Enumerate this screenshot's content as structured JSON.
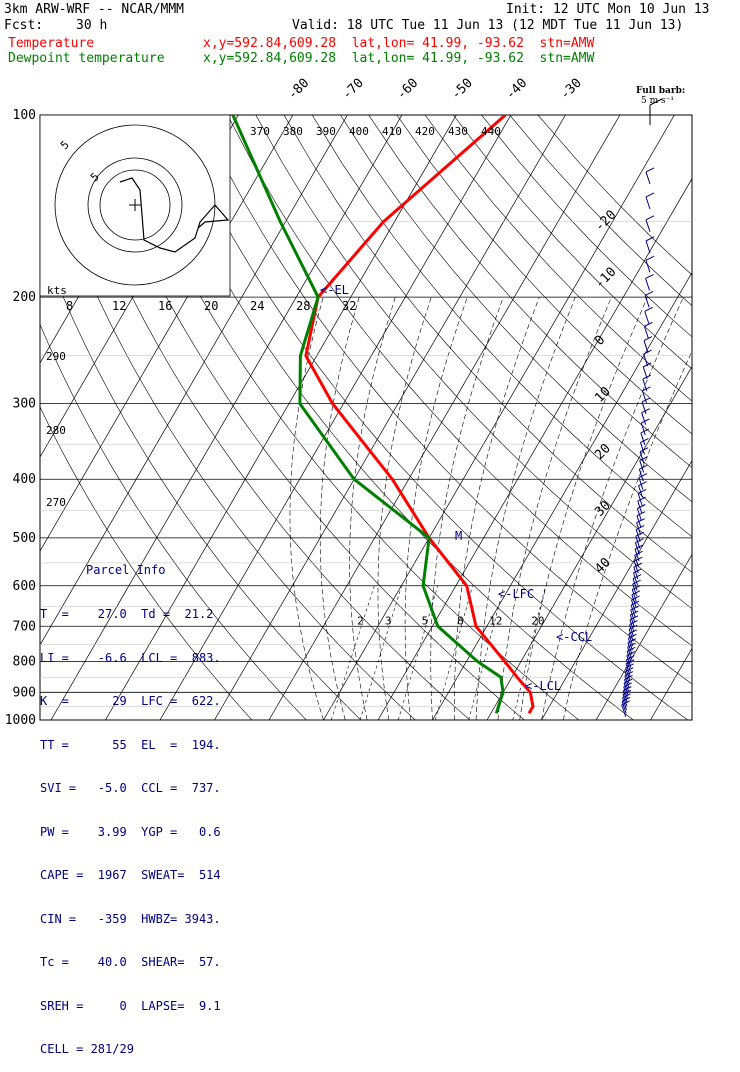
{
  "header": {
    "model": "3km ARW-WRF -- NCAR/MMM",
    "init": "Init: 12 UTC Mon 10 Jun 13",
    "fcst_label": "Fcst:",
    "fcst_value": "30 h",
    "valid": "Valid: 18 UTC Tue 11 Jun 13 (12 MDT Tue 11 Jun 13)",
    "temp_label": "Temperature",
    "temp_loc": "x,y=592.84,609.28  lat,lon= 41.99, -93.62  stn=AMW",
    "dew_label": "Dewpoint temperature",
    "dew_loc": "x,y=592.84,609.28  lat,lon= 41.99, -93.62  stn=AMW"
  },
  "colors": {
    "temperature": "#ff0000",
    "dewpoint": "#008000",
    "parcel_text": "#00007f",
    "grid": "#000000"
  },
  "chart_data": {
    "type": "line",
    "skew_t": {
      "pressure_levels": [
        "100",
        "200",
        "300",
        "400",
        "500",
        "600",
        "700",
        "800",
        "900",
        "1000"
      ],
      "isotherm_labels": [
        "-80",
        "-70",
        "-60",
        "-50",
        "-40",
        "-30",
        "-20",
        "-10",
        "0",
        "10",
        "20",
        "30",
        "40"
      ],
      "theta_labels_top": [
        "370",
        "380",
        "390",
        "400",
        "410",
        "420",
        "430",
        "440"
      ],
      "theta_labels_left": [
        "290",
        "280",
        "270"
      ],
      "mixing_ratio_labels": [
        "2",
        "3",
        "5",
        "8",
        "12",
        "20"
      ],
      "annotations": [
        "<-EL",
        "<-LFC",
        "<-CCL",
        "<-LCL",
        "M"
      ],
      "series": [
        {
          "name": "Temperature",
          "points": [
            [
              100,
              -41
            ],
            [
              150,
              -52
            ],
            [
              200,
              -56
            ],
            [
              250,
              -52
            ],
            [
              300,
              -42
            ],
            [
              400,
              -23
            ],
            [
              500,
              -10
            ],
            [
              600,
              2
            ],
            [
              700,
              8
            ],
            [
              800,
              17
            ],
            [
              850,
              21
            ],
            [
              900,
              25
            ],
            [
              950,
              27
            ],
            [
              975,
              27
            ]
          ]
        },
        {
          "name": "Dewpoint temperature",
          "points": [
            [
              100,
              -91
            ],
            [
              150,
              -71
            ],
            [
              200,
              -56
            ],
            [
              250,
              -53
            ],
            [
              300,
              -48
            ],
            [
              400,
              -30
            ],
            [
              500,
              -10
            ],
            [
              600,
              -6
            ],
            [
              700,
              1
            ],
            [
              800,
              12
            ],
            [
              850,
              18
            ],
            [
              900,
              20
            ],
            [
              975,
              21
            ]
          ]
        }
      ]
    },
    "hodograph": {
      "speed_label": "kts",
      "speed_scale": [
        "8",
        "12",
        "16",
        "20",
        "24",
        "28",
        "32"
      ],
      "ring_labels": [
        "5",
        "5"
      ]
    },
    "wind_barb_legend": {
      "title": "Full barb:",
      "value": "5 m s⁻¹"
    }
  },
  "parcel_info": {
    "title": "Parcel Info",
    "rows": [
      "T  =    27.0  Td =  21.2",
      "LI =    -6.6  LCL =  883.",
      "K  =      29  LFC =  622.",
      "TT =      55  EL  =  194.",
      "SVI =   -5.0  CCL =  737.",
      "PW =    3.99  YGP =   0.6",
      "CAPE =  1967  SWEAT=  514",
      "CIN =   -359  HWBZ= 3943.",
      "Tc =    40.0  SHEAR=  57.",
      "SREH =     0  LAPSE=  9.1",
      "CELL = 281/29"
    ]
  }
}
